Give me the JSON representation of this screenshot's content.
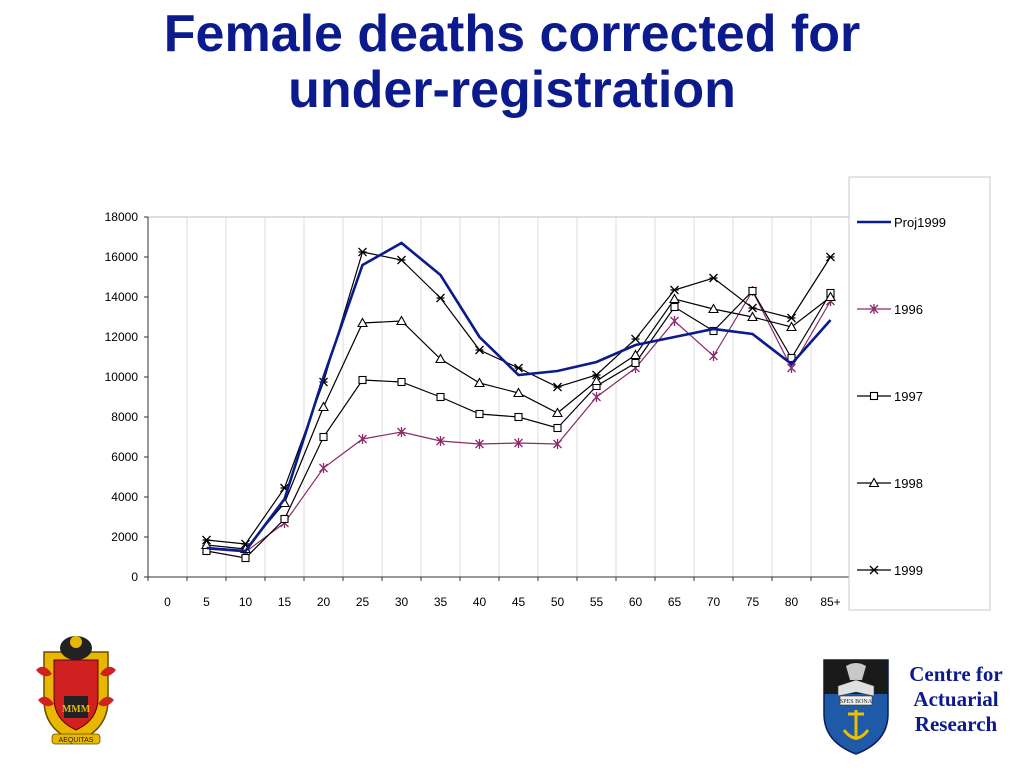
{
  "title_lines": [
    "Female deaths corrected for",
    "under-registration"
  ],
  "logo_right": {
    "text_lines": [
      "Centre for",
      "Actuarial",
      "Research"
    ],
    "banner_text": "SPES BONA"
  },
  "logo_left": {
    "motto": "AEQUITAS"
  },
  "chart_data": {
    "type": "line",
    "categories": [
      "0",
      "5",
      "10",
      "15",
      "20",
      "25",
      "30",
      "35",
      "40",
      "45",
      "50",
      "55",
      "60",
      "65",
      "70",
      "75",
      "80",
      "85+"
    ],
    "ylim": [
      0,
      18000
    ],
    "yticks": [
      0,
      2000,
      4000,
      6000,
      8000,
      10000,
      12000,
      14000,
      16000,
      18000
    ],
    "grid": "vertical",
    "legend_position": "right",
    "xlabel": "",
    "ylabel": "",
    "series": [
      {
        "name": "Proj1999",
        "color": "#0b1a8c",
        "marker": "none",
        "values": [
          null,
          1450,
          1300,
          3900,
          10000,
          15600,
          16700,
          15100,
          12000,
          10100,
          10300,
          10750,
          11600,
          12000,
          12400,
          12150,
          10650,
          12850
        ]
      },
      {
        "name": "1996",
        "color": "#8b2a6b",
        "marker": "star",
        "values": [
          null,
          1400,
          1250,
          2700,
          5450,
          6900,
          7250,
          6800,
          6650,
          6700,
          6650,
          9000,
          10450,
          12800,
          11050,
          14300,
          10450,
          13800
        ]
      },
      {
        "name": "1997",
        "color": "#000000",
        "marker": "square",
        "values": [
          null,
          1300,
          950,
          2900,
          7000,
          9850,
          9750,
          9000,
          8150,
          8000,
          7450,
          9550,
          10700,
          13500,
          12300,
          14300,
          10950,
          14200
        ]
      },
      {
        "name": "1998",
        "color": "#000000",
        "marker": "triangle",
        "values": [
          null,
          1600,
          1400,
          3700,
          8500,
          12700,
          12800,
          10900,
          9700,
          9200,
          8200,
          9800,
          11100,
          13900,
          13400,
          13000,
          12500,
          14000
        ]
      },
      {
        "name": "1999",
        "color": "#000000",
        "marker": "x",
        "values": [
          null,
          1850,
          1650,
          4450,
          9750,
          16250,
          15850,
          13950,
          11350,
          10450,
          9500,
          10100,
          11900,
          14350,
          14950,
          13450,
          12950,
          16000
        ]
      }
    ]
  }
}
